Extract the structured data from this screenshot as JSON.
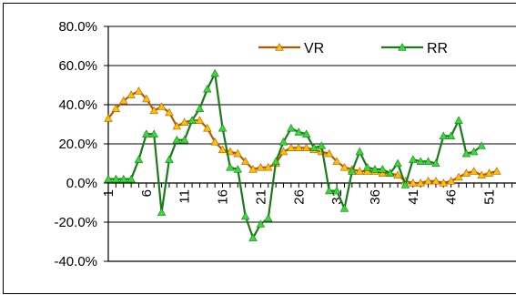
{
  "chart_data": {
    "type": "line",
    "title": "",
    "xlabel": "",
    "ylabel": "",
    "ylim": [
      -40,
      80
    ],
    "y_tick_values": [
      80,
      60,
      40,
      20,
      0,
      -20,
      -40
    ],
    "y_tick_labels": [
      "80.0%",
      "60.0%",
      "40.0%",
      "20.0%",
      "0.0%",
      "-20.0%",
      "-40.0%"
    ],
    "x_range": [
      1,
      55
    ],
    "x_tick_labels": [
      "1",
      "6",
      "11",
      "16",
      "21",
      "26",
      "31",
      "36",
      "41",
      "46",
      "51"
    ],
    "grid": "horizontal",
    "legend_position": "top-right",
    "series": [
      {
        "name": "VR",
        "line_color": "#b35900",
        "marker_color": "#ffc000",
        "values": [
          33,
          38,
          42,
          45,
          47,
          43,
          37,
          39,
          36,
          29,
          31,
          32,
          32,
          28,
          21,
          17,
          16,
          15,
          11,
          7,
          8,
          8,
          10,
          16,
          18,
          18,
          18,
          17,
          16,
          15,
          11,
          8,
          7,
          6,
          6,
          6,
          5,
          5,
          4,
          1,
          0,
          0,
          1,
          1,
          0,
          1,
          3,
          5,
          6,
          4,
          5,
          6
        ]
      },
      {
        "name": "RR",
        "line_color": "#1a7a1a",
        "marker_color": "#33dd33",
        "values": [
          2,
          2,
          2,
          2,
          12,
          25,
          25,
          -15,
          12,
          22,
          22,
          32,
          38,
          48,
          56,
          28,
          8,
          7,
          -17,
          -28,
          -21,
          -18,
          11,
          21,
          28,
          26,
          25,
          18,
          19,
          -4,
          -4,
          -13,
          6,
          16,
          8,
          7,
          7,
          5,
          10,
          -1,
          12,
          11,
          11,
          10,
          24,
          24,
          32,
          15,
          16,
          19
        ]
      }
    ]
  }
}
